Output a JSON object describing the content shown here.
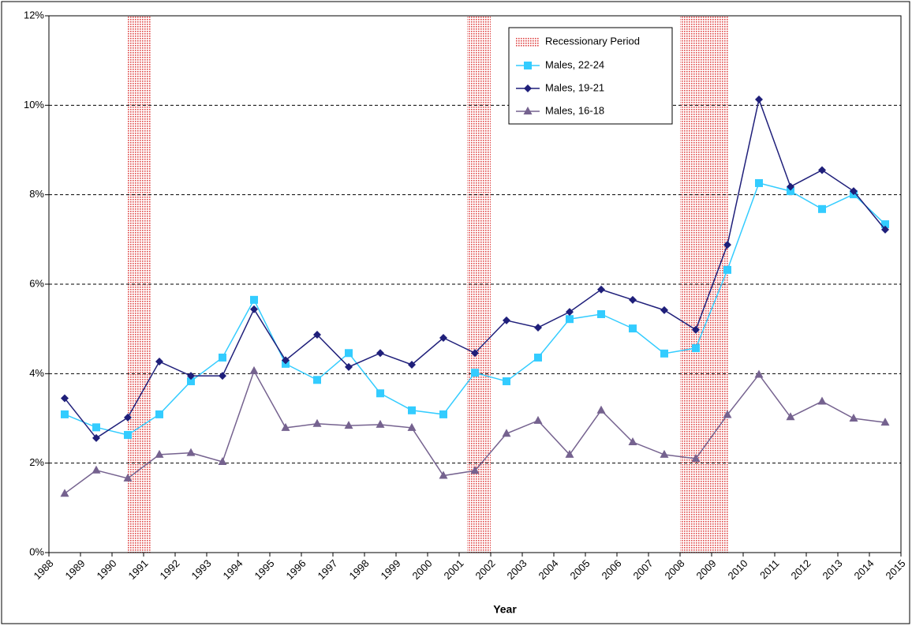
{
  "chart_data": {
    "type": "line",
    "x_label": "Year",
    "x": [
      1988.5,
      1989.5,
      1990.5,
      1991.5,
      1992.5,
      1993.5,
      1994.5,
      1995.5,
      1996.5,
      1997.5,
      1998.5,
      1999.5,
      2000.5,
      2001.5,
      2002.5,
      2003.5,
      2004.5,
      2005.5,
      2006.5,
      2007.5,
      2008.5,
      2009.5,
      2010.5,
      2011.5,
      2012.5,
      2013.5,
      2014.5
    ],
    "series": [
      {
        "name": "Males, 22-24",
        "color": "#33ccff",
        "marker": "square",
        "values": [
          3.09,
          2.8,
          2.63,
          3.09,
          3.83,
          4.36,
          5.65,
          4.22,
          3.86,
          4.46,
          3.56,
          3.18,
          3.09,
          4.02,
          3.83,
          4.36,
          5.22,
          5.33,
          5.01,
          4.45,
          4.57,
          6.32,
          8.26,
          8.08,
          7.68,
          8.01,
          7.34
        ]
      },
      {
        "name": "Males, 19-21",
        "color": "#1f1f7a",
        "marker": "diamond",
        "values": [
          3.45,
          2.56,
          3.02,
          4.27,
          3.95,
          3.95,
          5.44,
          4.3,
          4.87,
          4.15,
          4.46,
          4.2,
          4.8,
          4.46,
          5.19,
          5.03,
          5.38,
          5.88,
          5.65,
          5.42,
          4.98,
          6.88,
          10.13,
          8.18,
          8.55,
          8.08,
          7.22
        ]
      },
      {
        "name": "Males, 16-18",
        "color": "#75628f",
        "marker": "triangle",
        "values": [
          1.32,
          1.84,
          1.66,
          2.19,
          2.23,
          2.03,
          4.06,
          2.79,
          2.88,
          2.84,
          2.86,
          2.79,
          1.72,
          1.83,
          2.66,
          2.95,
          2.19,
          3.18,
          2.47,
          2.19,
          2.1,
          3.08,
          3.98,
          3.03,
          3.38,
          3.0,
          2.91
        ]
      }
    ],
    "recessions": {
      "name": "Recessionary Period",
      "color": "#e04848",
      "periods": [
        [
          1990.5,
          1991.25
        ],
        [
          2001.25,
          2002
        ],
        [
          2008,
          2009.55
        ]
      ]
    },
    "xlim": [
      1988,
      2015
    ],
    "xticks": [
      1988,
      1989,
      1990,
      1991,
      1992,
      1993,
      1994,
      1995,
      1996,
      1997,
      1998,
      1999,
      2000,
      2001,
      2002,
      2003,
      2004,
      2005,
      2006,
      2007,
      2008,
      2009,
      2010,
      2011,
      2012,
      2013,
      2014,
      2015
    ],
    "ylim": [
      0,
      12
    ],
    "yticks": [
      {
        "value": 0,
        "label": "0%"
      },
      {
        "value": 2,
        "label": "2%"
      },
      {
        "value": 4,
        "label": "4%"
      },
      {
        "value": 6,
        "label": "6%"
      },
      {
        "value": 8,
        "label": "8%"
      },
      {
        "value": 10,
        "label": "10%"
      },
      {
        "value": 12,
        "label": "12%"
      }
    ],
    "grid": true
  }
}
